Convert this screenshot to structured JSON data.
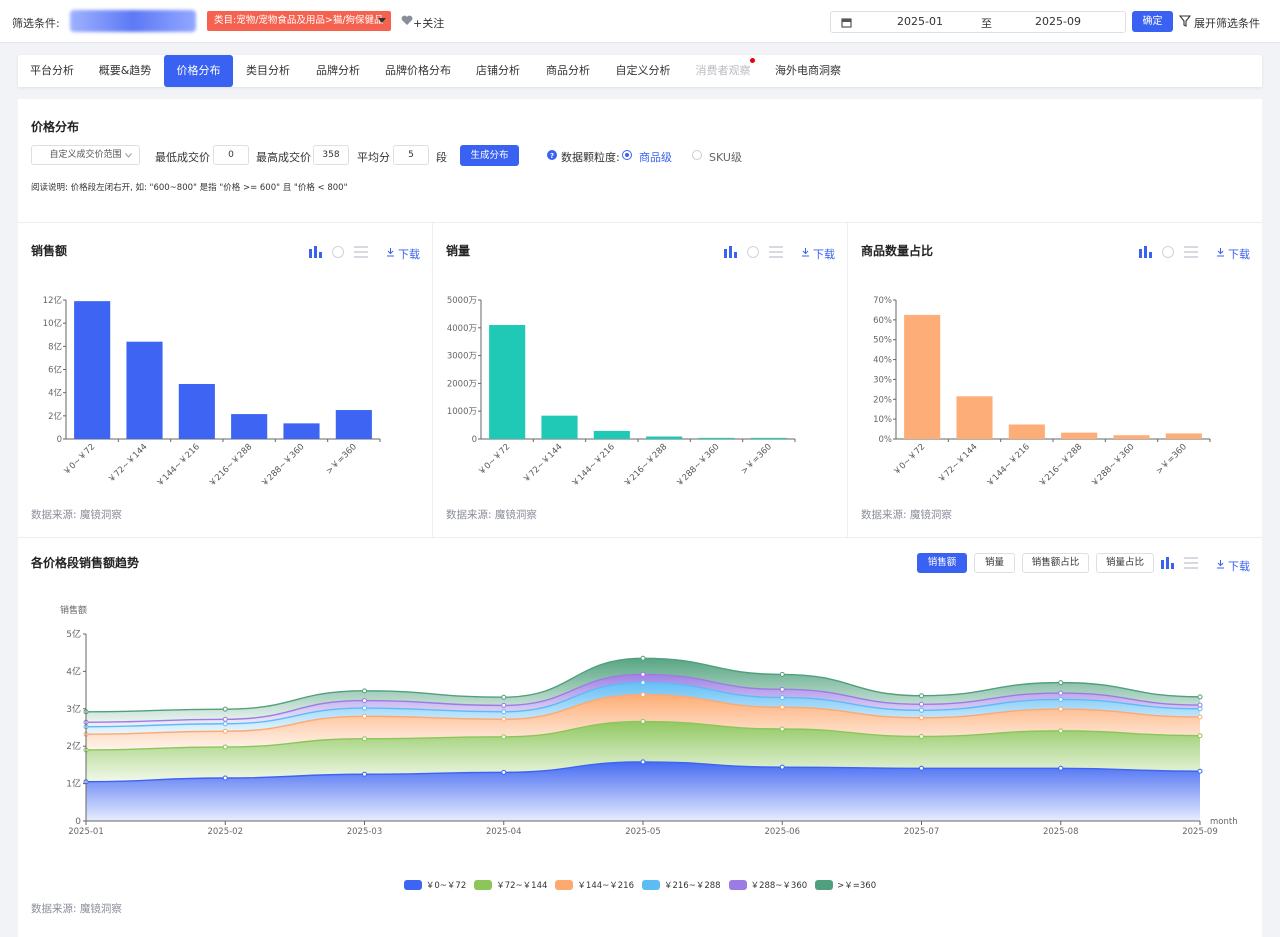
{
  "filter": {
    "label": "筛选条件:",
    "category_tag": "类目:宠物/宠物食品及用品>猫/狗保健品",
    "follow": "+关注",
    "date_start": "2025-01",
    "date_to": "至",
    "date_end": "2025-09",
    "confirm": "确定",
    "expand": "展开筛选条件"
  },
  "tabs": [
    {
      "label": "平台分析"
    },
    {
      "label": "概要&趋势"
    },
    {
      "label": "价格分布"
    },
    {
      "label": "类目分析"
    },
    {
      "label": "品牌分析"
    },
    {
      "label": "品牌价格分布"
    },
    {
      "label": "店铺分析"
    },
    {
      "label": "商品分析"
    },
    {
      "label": "自定义分析"
    },
    {
      "label": "消费者观察"
    },
    {
      "label": "海外电商洞察"
    }
  ],
  "price_dist": {
    "title": "价格分布",
    "range_select": "自定义成交价范围",
    "min_label": "最低成交价",
    "min_value": "0",
    "max_label": "最高成交价",
    "max_value": "358",
    "split_label": "平均分",
    "split_value": "5",
    "split_unit": "段",
    "generate": "生成分布",
    "granularity_label": "数据颗粒度:",
    "opt_product": "商品级",
    "opt_sku": "SKU级",
    "note": "阅读说明: 价格段左闭右开, 如: \"600~800\" 是指 \"价格 >= 600\" 且 \"价格 < 800\""
  },
  "common": {
    "download": "下载",
    "source": "数据来源: 魔镜洞察"
  },
  "colors": {
    "accent": "#3a62f2",
    "red_tag": "#f5624f",
    "series": [
      "#3d64f2",
      "#8cc65a",
      "#fda96f",
      "#5ebcf5",
      "#9b7ce4",
      "#4fa07c"
    ]
  },
  "chart_data": [
    {
      "type": "bar",
      "title": "销售额",
      "categories": [
        "￥0~￥72",
        "￥72~￥144",
        "￥144~￥216",
        "￥216~￥288",
        "￥288~￥360",
        ">￥=360"
      ],
      "values": [
        11.9,
        8.4,
        4.75,
        2.15,
        1.35,
        2.5
      ],
      "ylim": [
        0,
        12
      ],
      "yticks": [
        "0",
        "2亿",
        "4亿",
        "6亿",
        "8亿",
        "10亿",
        "12亿"
      ],
      "color": "#3d64f2"
    },
    {
      "type": "bar",
      "title": "销量",
      "categories": [
        "￥0~￥72",
        "￥72~￥144",
        "￥144~￥216",
        "￥216~￥288",
        "￥288~￥360",
        ">￥=360"
      ],
      "values": [
        4100,
        840,
        290,
        90,
        40,
        40
      ],
      "ylim": [
        0,
        5000
      ],
      "yticks": [
        "0",
        "1000万",
        "2000万",
        "3000万",
        "4000万",
        "5000万"
      ],
      "color": "#20c9b5"
    },
    {
      "type": "bar",
      "title": "商品数量占比",
      "categories": [
        "￥0~￥72",
        "￥72~￥144",
        "￥144~￥216",
        "￥216~￥288",
        "￥288~￥360",
        ">￥=360"
      ],
      "values": [
        62.5,
        21.5,
        7.3,
        3.2,
        1.9,
        2.8
      ],
      "ylim": [
        0,
        70
      ],
      "yticks": [
        "0%",
        "10%",
        "20%",
        "30%",
        "40%",
        "50%",
        "60%",
        "70%"
      ],
      "color": "#fdad78"
    },
    {
      "type": "area",
      "title": "各价格段销售额趋势",
      "ylabel": "销售额",
      "xlabel": "month",
      "x": [
        "2025-01",
        "2025-02",
        "2025-03",
        "2025-04",
        "2025-05",
        "2025-06",
        "2025-07",
        "2025-08",
        "2025-09"
      ],
      "ylim": [
        0,
        5
      ],
      "yticks": [
        "0",
        "1亿",
        "2亿",
        "3亿",
        "4亿",
        "5亿"
      ],
      "toggles": [
        "销售额",
        "销量",
        "销售额占比",
        "销量占比"
      ],
      "series": [
        {
          "name": "￥0~￥72",
          "values": [
            1.05,
            1.15,
            1.25,
            1.3,
            1.58,
            1.44,
            1.41,
            1.41,
            1.33
          ]
        },
        {
          "name": "￥72~￥144",
          "values": [
            0.85,
            0.83,
            0.95,
            0.95,
            1.08,
            1.02,
            0.85,
            1.0,
            0.95
          ]
        },
        {
          "name": "￥144~￥216",
          "values": [
            0.42,
            0.42,
            0.6,
            0.47,
            0.72,
            0.58,
            0.5,
            0.58,
            0.5
          ]
        },
        {
          "name": "￥216~￥288",
          "values": [
            0.2,
            0.2,
            0.22,
            0.2,
            0.32,
            0.26,
            0.2,
            0.26,
            0.22
          ]
        },
        {
          "name": "￥288~￥360",
          "values": [
            0.12,
            0.12,
            0.2,
            0.17,
            0.22,
            0.22,
            0.16,
            0.17,
            0.1
          ]
        },
        {
          "name": ">￥=360",
          "values": [
            0.28,
            0.27,
            0.26,
            0.22,
            0.43,
            0.4,
            0.23,
            0.28,
            0.22
          ]
        }
      ]
    }
  ]
}
